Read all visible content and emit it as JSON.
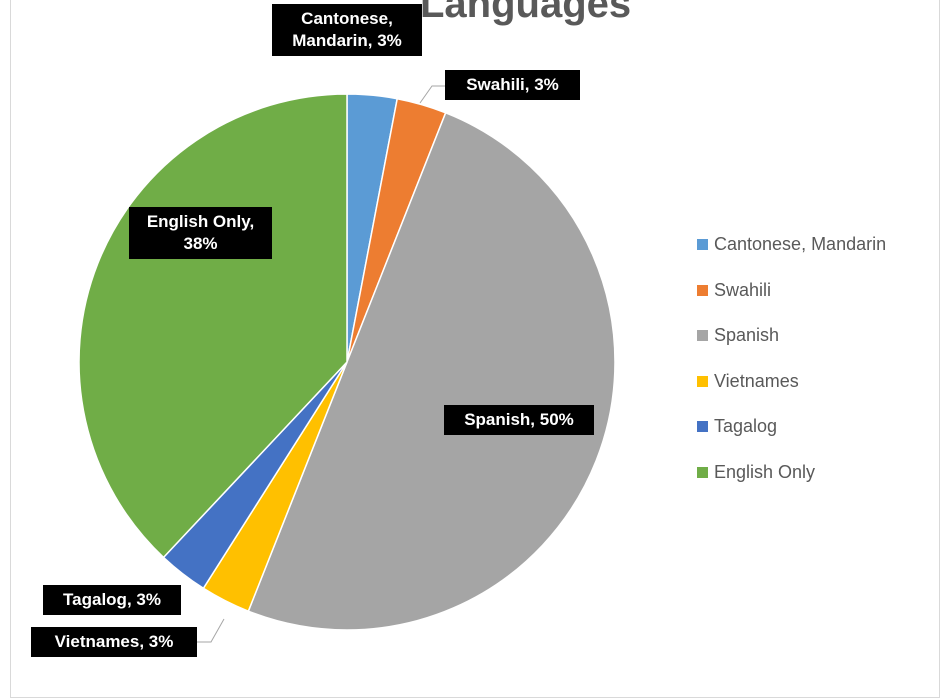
{
  "chart_data": {
    "type": "pie",
    "title": "Languages",
    "categories": [
      "Cantonese, Mandarin",
      "Swahili",
      "Spanish",
      "Vietnames",
      "Tagalog",
      "English Only"
    ],
    "values": [
      3,
      3,
      50,
      3,
      3,
      38
    ],
    "colors": [
      "#5b9bd5",
      "#ed7d31",
      "#a5a5a5",
      "#ffc000",
      "#4472c4",
      "#70ad47"
    ],
    "data_labels": [
      "Cantonese, Mandarin, 3%",
      "Swahili, 3%",
      "Spanish, 50%",
      "Vietnames, 3%",
      "Tagalog, 3%",
      "English Only, 38%"
    ],
    "legend_position": "right"
  }
}
